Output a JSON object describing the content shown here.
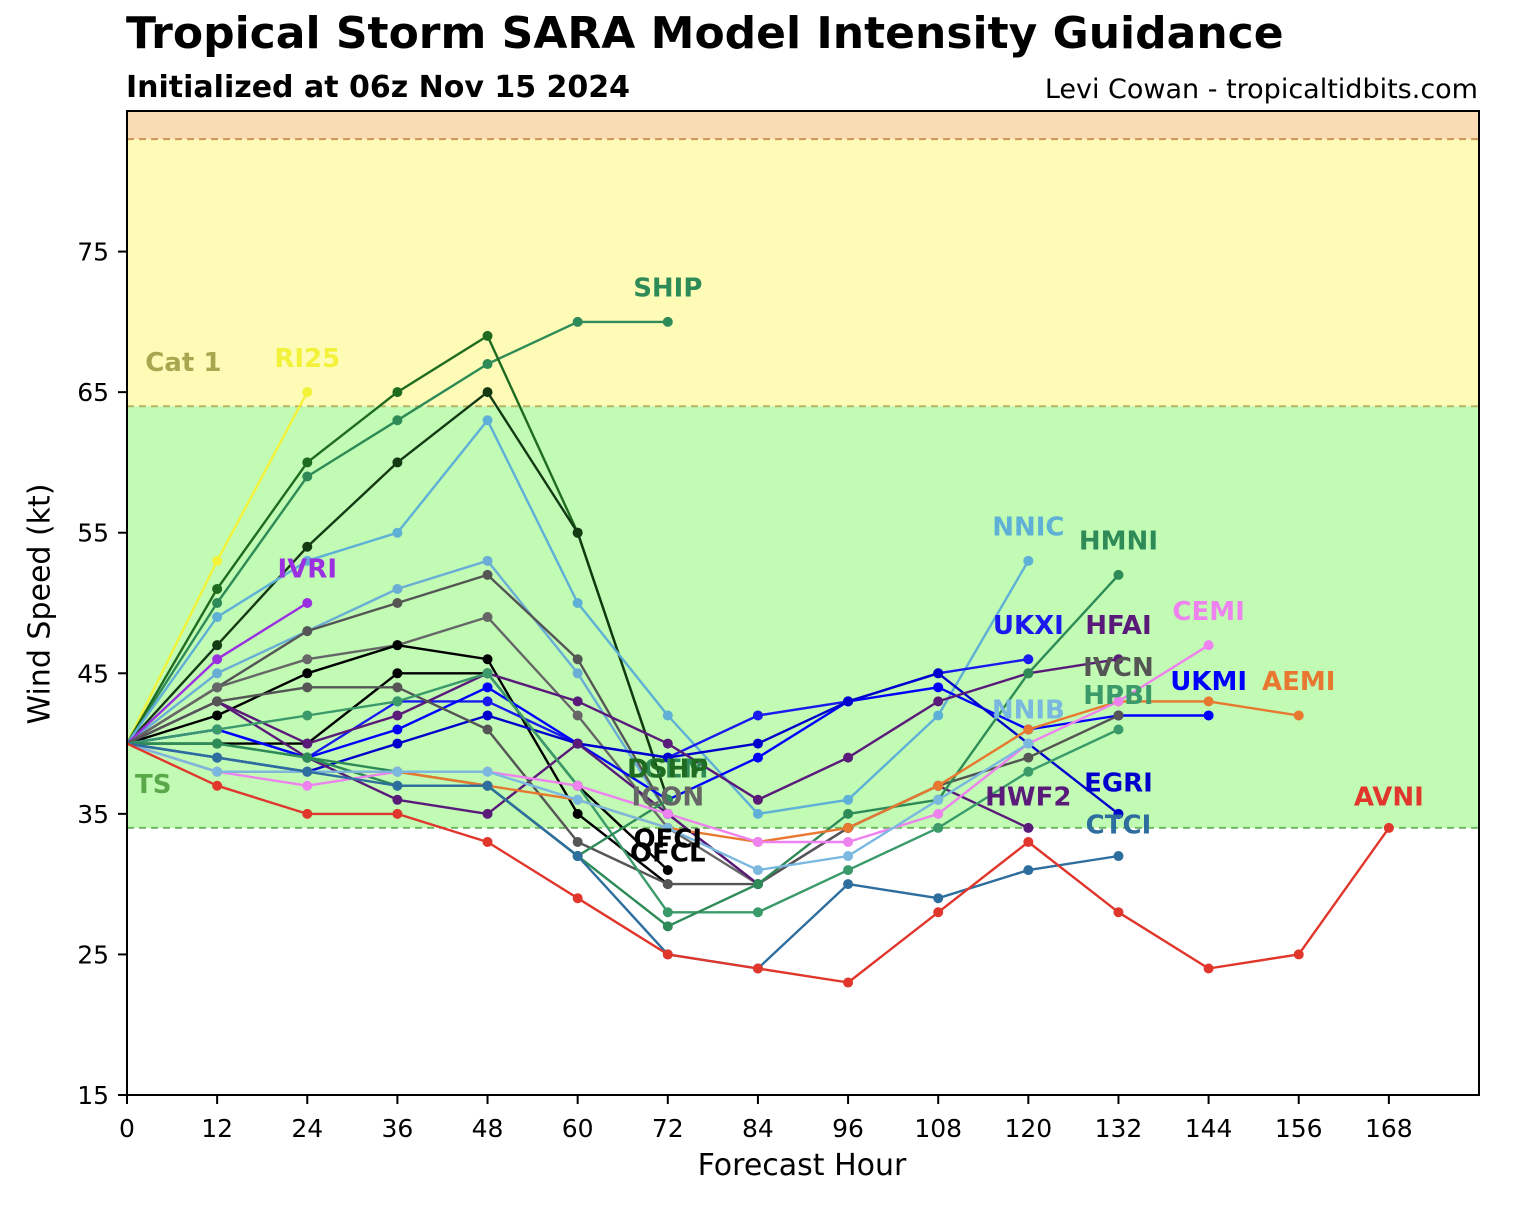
{
  "title": "Tropical Storm SARA Model Intensity Guidance",
  "subtitle": "Initialized at 06z Nov 15 2024",
  "credit": "Levi Cowan - tropicaltidbits.com",
  "chart_data": {
    "type": "line",
    "xlabel": "Forecast Hour",
    "ylabel": "Wind Speed (kt)",
    "xlim": [
      0,
      180
    ],
    "ylim": [
      15,
      85
    ],
    "x_ticks": [
      "0",
      "12",
      "24",
      "36",
      "48",
      "60",
      "72",
      "84",
      "96",
      "108",
      "120",
      "132",
      "144",
      "156",
      "168"
    ],
    "y_ticks": [
      "15",
      "25",
      "35",
      "45",
      "55",
      "65",
      "75"
    ],
    "grid": false,
    "bands": [
      {
        "name": "TS",
        "from": 34,
        "to": 64,
        "color": "#c1fbb4",
        "label_color": "#5aa84a"
      },
      {
        "name": "Cat 1",
        "from": 64,
        "to": 83,
        "color": "#fefbb7",
        "label_color": "#a8a64e"
      },
      {
        "name": "",
        "from": 83,
        "to": 85,
        "color": "#fadcb4",
        "label_color": "#c08040"
      }
    ],
    "series": [
      {
        "name": "RI25",
        "color": "#f2f23a",
        "x": [
          0,
          12,
          24
        ],
        "y": [
          40,
          53,
          65
        ]
      },
      {
        "name": "SHIP",
        "color": "#2e8b57",
        "x": [
          0,
          12,
          24,
          36,
          48,
          60,
          72
        ],
        "y": [
          40,
          50,
          59,
          63,
          67,
          70,
          70
        ]
      },
      {
        "name": "",
        "color": "#1f6b1f",
        "x": [
          0,
          12,
          24,
          36,
          48,
          60,
          72
        ],
        "y": [
          40,
          51,
          60,
          65,
          69,
          55,
          36
        ]
      },
      {
        "name": "",
        "color": "#143a14",
        "x": [
          0,
          12,
          24,
          36,
          48,
          60,
          72
        ],
        "y": [
          40,
          47,
          54,
          60,
          65,
          55,
          36
        ]
      },
      {
        "name": "",
        "color": "#5fb0d6",
        "x": [
          0,
          12,
          24,
          36,
          48,
          60,
          72,
          84,
          96,
          108,
          120
        ],
        "y": [
          40,
          49,
          53,
          55,
          63,
          50,
          42,
          35,
          36,
          42,
          53
        ]
      },
      {
        "name": "",
        "color": "#6aaed6",
        "x": [
          0,
          12,
          24,
          36,
          48,
          60,
          72
        ],
        "y": [
          40,
          45,
          48,
          51,
          53,
          45,
          35
        ]
      },
      {
        "name": "IVRI",
        "color": "#9b30e0",
        "x": [
          0,
          12,
          24
        ],
        "y": [
          40,
          46,
          50
        ]
      },
      {
        "name": "",
        "color": "#555555",
        "x": [
          0,
          12,
          24,
          36,
          48,
          60,
          72,
          84
        ],
        "y": [
          40,
          44,
          48,
          50,
          52,
          46,
          35,
          30
        ]
      },
      {
        "name": "",
        "color": "#666666",
        "x": [
          0,
          12,
          24,
          36,
          48,
          60,
          72,
          84
        ],
        "y": [
          40,
          44,
          46,
          47,
          49,
          42,
          34,
          30
        ]
      },
      {
        "name": "",
        "color": "#000000",
        "x": [
          0,
          12,
          24,
          36,
          48,
          60,
          72
        ],
        "y": [
          40,
          42,
          45,
          47,
          46,
          35,
          30
        ]
      },
      {
        "name": "",
        "color": "#000000",
        "x": [
          0,
          12,
          24,
          36,
          48,
          60,
          72
        ],
        "y": [
          40,
          40,
          40,
          45,
          45,
          37,
          31
        ]
      },
      {
        "name": "",
        "color": "#1a1aee",
        "x": [
          0,
          12,
          24,
          36,
          48,
          60,
          72,
          84,
          96,
          108,
          120
        ],
        "y": [
          40,
          41,
          39,
          43,
          43,
          40,
          39,
          42,
          43,
          45,
          46
        ]
      },
      {
        "name": "",
        "color": "#0000ff",
        "x": [
          0,
          12,
          24,
          36,
          48,
          60,
          72,
          84,
          96,
          108,
          120,
          132,
          144
        ],
        "y": [
          40,
          41,
          39,
          41,
          44,
          40,
          36,
          39,
          43,
          44,
          41,
          42,
          42
        ]
      },
      {
        "name": "",
        "color": "#0000cc",
        "x": [
          0,
          12,
          24,
          36,
          48,
          60,
          72,
          84,
          96,
          108,
          120,
          132
        ],
        "y": [
          40,
          39,
          38,
          40,
          42,
          40,
          39,
          40,
          43,
          45,
          40,
          35
        ]
      },
      {
        "name": "",
        "color": "#5a1a7a",
        "x": [
          0,
          12,
          24,
          36,
          48,
          60,
          72,
          84,
          96,
          108,
          120,
          132
        ],
        "y": [
          40,
          43,
          40,
          42,
          45,
          43,
          40,
          36,
          39,
          43,
          45,
          46
        ]
      },
      {
        "name": "",
        "color": "#5a1a7a",
        "x": [
          0,
          12,
          24,
          36,
          48,
          60,
          72,
          84,
          96,
          108,
          120
        ],
        "y": [
          40,
          43,
          39,
          36,
          35,
          40,
          35,
          30,
          34,
          37,
          34
        ]
      },
      {
        "name": "",
        "color": "#555555",
        "x": [
          0,
          12,
          24,
          36,
          48,
          60,
          72,
          84,
          96,
          108,
          120,
          132
        ],
        "y": [
          40,
          43,
          44,
          44,
          41,
          33,
          30,
          30,
          34,
          37,
          39,
          42
        ]
      },
      {
        "name": "",
        "color": "#3a9a6a",
        "x": [
          0,
          12,
          24,
          36,
          48,
          60,
          72,
          84,
          96,
          108,
          120,
          132
        ],
        "y": [
          40,
          41,
          42,
          43,
          45,
          37,
          28,
          28,
          31,
          34,
          38,
          41
        ]
      },
      {
        "name": "",
        "color": "#2e8b57",
        "x": [
          0,
          12,
          24,
          36,
          48,
          60,
          72,
          84,
          96,
          108,
          120,
          132
        ],
        "y": [
          40,
          40,
          39,
          37,
          37,
          32,
          27,
          30,
          35,
          36,
          45,
          52
        ]
      },
      {
        "name": "",
        "color": "#2e8b57",
        "x": [
          0,
          12,
          24,
          36,
          48,
          60,
          72
        ],
        "y": [
          40,
          40,
          39,
          38,
          37,
          32,
          36
        ]
      },
      {
        "name": "",
        "color": "#e87830",
        "x": [
          0,
          12,
          24,
          36,
          48,
          60,
          72,
          84,
          96,
          108,
          120,
          132,
          144,
          156
        ],
        "y": [
          40,
          38,
          38,
          38,
          37,
          36,
          34,
          33,
          34,
          37,
          41,
          43,
          43,
          42
        ]
      },
      {
        "name": "",
        "color": "#ee82ee",
        "x": [
          0,
          12,
          24,
          36,
          48,
          60,
          72,
          84,
          96,
          108,
          120,
          132,
          144
        ],
        "y": [
          40,
          38,
          37,
          38,
          38,
          37,
          35,
          33,
          33,
          35,
          40,
          43,
          47
        ]
      },
      {
        "name": "",
        "color": "#7ab8e0",
        "x": [
          0,
          12,
          24,
          36,
          48,
          60,
          72,
          84,
          96,
          108,
          120
        ],
        "y": [
          40,
          38,
          38,
          38,
          38,
          36,
          34,
          31,
          32,
          36,
          40
        ]
      },
      {
        "name": "",
        "color": "#2e6e9e",
        "x": [
          0,
          12,
          24,
          36,
          48,
          60,
          72,
          84,
          96,
          108,
          120,
          132
        ],
        "y": [
          40,
          39,
          38,
          37,
          37,
          32,
          25,
          24,
          30,
          29,
          31,
          32
        ]
      },
      {
        "name": "AVNI",
        "color": "#e0362c",
        "x": [
          0,
          12,
          24,
          36,
          48,
          60,
          72,
          84,
          96,
          108,
          120,
          132,
          144,
          156,
          168
        ],
        "y": [
          40,
          37,
          35,
          35,
          33,
          29,
          25,
          24,
          23,
          28,
          33,
          28,
          24,
          25,
          34
        ]
      }
    ],
    "annotations": [
      {
        "text": "TS",
        "x": 3.5,
        "y": 36.5,
        "color": "#5aa84a"
      },
      {
        "text": "Cat 1",
        "x": 7.5,
        "y": 66.5,
        "color": "#a8a64e"
      },
      {
        "text": "RI25",
        "x": 24,
        "y": 66.8,
        "color": "#f2f23a"
      },
      {
        "text": "SHIP",
        "x": 72,
        "y": 71.8,
        "color": "#2e8b57"
      },
      {
        "text": "IVRI",
        "x": 24,
        "y": 51.8,
        "color": "#9b30e0"
      },
      {
        "text": "NNIC",
        "x": 120,
        "y": 54.8,
        "color": "#5fb0d6"
      },
      {
        "text": "HMNI",
        "x": 132,
        "y": 53.8,
        "color": "#2e8b57"
      },
      {
        "text": "UKXI",
        "x": 120,
        "y": 47.8,
        "color": "#1a1aee"
      },
      {
        "text": "HFAI",
        "x": 132,
        "y": 47.8,
        "color": "#5a1a7a"
      },
      {
        "text": "CEMI",
        "x": 144,
        "y": 48.8,
        "color": "#ee82ee"
      },
      {
        "text": "IVCN",
        "x": 132,
        "y": 44.8,
        "color": "#555555"
      },
      {
        "text": "HPBI",
        "x": 132,
        "y": 42.8,
        "color": "#3a9a6a"
      },
      {
        "text": "NNIB",
        "x": 120,
        "y": 41.8,
        "color": "#7ab8e0"
      },
      {
        "text": "UKMI",
        "x": 144,
        "y": 43.8,
        "color": "#0000ff"
      },
      {
        "text": "AEMI",
        "x": 156,
        "y": 43.8,
        "color": "#e87830"
      },
      {
        "text": "EGRI",
        "x": 132,
        "y": 36.6,
        "color": "#0000cc"
      },
      {
        "text": "HWF2",
        "x": 120,
        "y": 35.6,
        "color": "#5a1a7a"
      },
      {
        "text": "CTCI",
        "x": 132,
        "y": 33.6,
        "color": "#2e6e9e"
      },
      {
        "text": "AVNI",
        "x": 168,
        "y": 35.6,
        "color": "#e0362c"
      },
      {
        "text": "LGEM",
        "x": 72,
        "y": 37.6,
        "color": "#2e8b57"
      },
      {
        "text": "DSHP",
        "x": 72,
        "y": 37.6,
        "color": "#1f6b1f"
      },
      {
        "text": "ICON",
        "x": 72,
        "y": 35.6,
        "color": "#666666"
      },
      {
        "text": "OFCI",
        "x": 72,
        "y": 32.6,
        "color": "#000000"
      },
      {
        "text": "OFCL",
        "x": 72,
        "y": 31.6,
        "color": "#000000"
      }
    ]
  }
}
